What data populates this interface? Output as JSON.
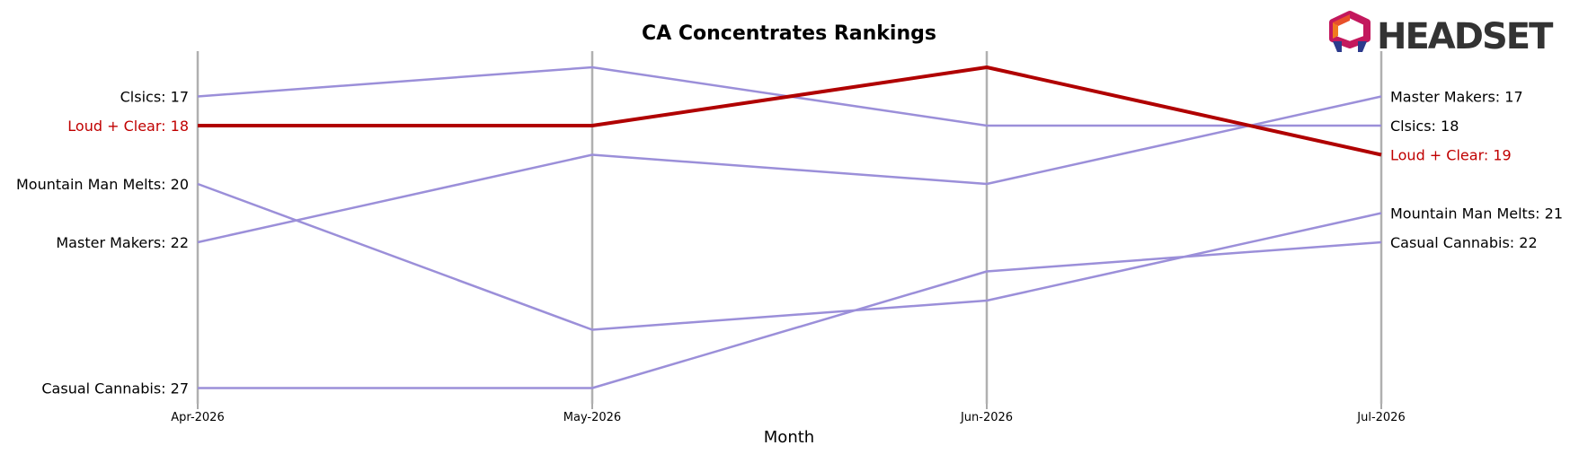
{
  "chart_data": {
    "type": "line",
    "title": "CA Concentrates Rankings",
    "xlabel": "Month",
    "ylabel": "",
    "x": [
      "Apr-2026",
      "May-2026",
      "Jun-2026",
      "Jul-2026"
    ],
    "y_inverted": true,
    "ylim": [
      28,
      15
    ],
    "series": [
      {
        "name": "Clsics",
        "values": [
          17,
          16,
          18,
          18
        ],
        "color": "#9b8fd9",
        "highlight": false
      },
      {
        "name": "Loud + Clear",
        "values": [
          18,
          18,
          16,
          19
        ],
        "color": "#b00000",
        "highlight": true
      },
      {
        "name": "Mountain Man Melts",
        "values": [
          20,
          25,
          24,
          21
        ],
        "color": "#9b8fd9",
        "highlight": false
      },
      {
        "name": "Master Makers",
        "values": [
          22,
          19,
          20,
          17
        ],
        "color": "#9b8fd9",
        "highlight": false
      },
      {
        "name": "Casual Cannabis",
        "values": [
          27,
          27,
          23,
          22
        ],
        "color": "#9b8fd9",
        "highlight": false
      }
    ],
    "start_labels": [
      {
        "series": "Clsics",
        "text": "Clsics: 17"
      },
      {
        "series": "Loud + Clear",
        "text": "Loud + Clear: 18"
      },
      {
        "series": "Mountain Man Melts",
        "text": "Mountain Man Melts: 20"
      },
      {
        "series": "Master Makers",
        "text": "Master Makers: 22"
      },
      {
        "series": "Casual Cannabis",
        "text": "Casual Cannabis: 27"
      }
    ],
    "end_labels": [
      {
        "series": "Master Makers",
        "text": "Master Makers: 17"
      },
      {
        "series": "Clsics",
        "text": "Clsics: 18"
      },
      {
        "series": "Loud + Clear",
        "text": "Loud + Clear: 19"
      },
      {
        "series": "Mountain Man Melts",
        "text": "Mountain Man Melts: 21"
      },
      {
        "series": "Casual Cannabis",
        "text": "Casual Cannabis: 22"
      }
    ],
    "grid": "vertical lines at each month",
    "legend": "none"
  },
  "brand": {
    "name": "HEADSET",
    "icon": "headset-logo-icon"
  }
}
